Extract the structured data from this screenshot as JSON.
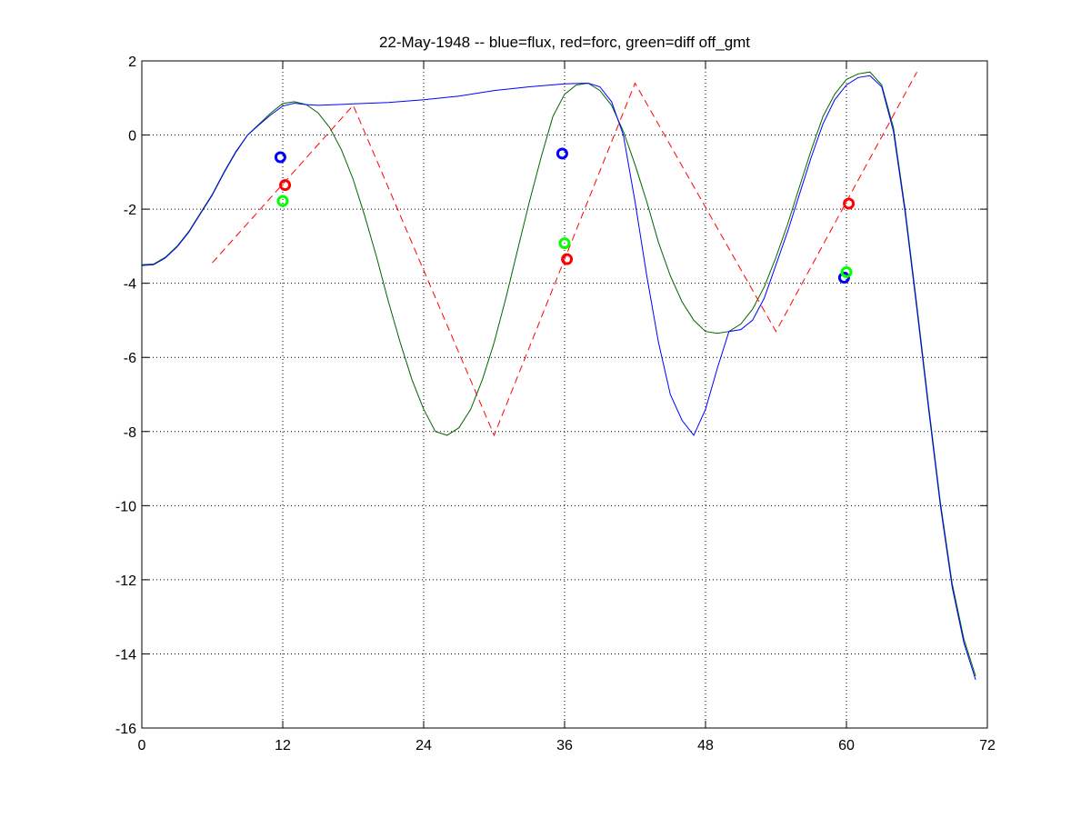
{
  "chart_data": {
    "type": "line",
    "title": "22-May-1948 -- blue=flux, red=forc, green=diff off_gmt",
    "xlim": [
      0,
      72
    ],
    "ylim": [
      -16,
      2
    ],
    "x_ticks": [
      0,
      12,
      24,
      36,
      48,
      60,
      72
    ],
    "y_ticks": [
      2,
      0,
      -2,
      -4,
      -6,
      -8,
      -10,
      -12,
      -14,
      -16
    ],
    "grid": true,
    "colors": {
      "blue": "#0000ff",
      "red": "#ff0000",
      "green": "#00ff00",
      "dark_green": "#006400",
      "axes": "#000000"
    },
    "series": [
      {
        "color": "#006400",
        "style": "solid",
        "x": [
          0,
          1,
          2,
          3,
          4,
          5,
          6,
          7,
          8,
          9,
          10,
          11,
          12,
          13,
          14,
          15,
          16,
          17,
          18,
          19,
          20,
          21,
          22,
          23,
          24,
          25,
          26,
          27,
          28,
          29,
          30,
          31,
          32,
          33,
          34,
          35,
          36,
          37,
          38,
          39,
          40,
          41,
          42,
          43,
          44,
          45,
          46,
          47,
          48,
          49,
          50,
          51,
          52,
          53,
          54,
          55,
          56,
          57,
          58,
          59,
          60,
          61,
          62,
          63,
          64,
          65,
          66,
          67,
          68,
          69,
          70,
          71
        ],
        "y": [
          -3.5,
          -3.48,
          -3.3,
          -3.0,
          -2.6,
          -2.1,
          -1.6,
          -1.0,
          -0.45,
          0.0,
          0.3,
          0.6,
          0.85,
          0.9,
          0.82,
          0.6,
          0.2,
          -0.4,
          -1.2,
          -2.2,
          -3.3,
          -4.5,
          -5.6,
          -6.6,
          -7.4,
          -8.0,
          -8.1,
          -7.9,
          -7.4,
          -6.6,
          -5.6,
          -4.4,
          -3.1,
          -1.8,
          -0.6,
          0.5,
          1.1,
          1.35,
          1.4,
          1.2,
          0.8,
          0.1,
          -0.8,
          -1.8,
          -2.9,
          -3.8,
          -4.5,
          -5.0,
          -5.3,
          -5.35,
          -5.3,
          -5.1,
          -4.7,
          -4.1,
          -3.3,
          -2.4,
          -1.4,
          -0.4,
          0.5,
          1.1,
          1.5,
          1.65,
          1.7,
          1.35,
          0.2,
          -2.0,
          -4.6,
          -7.3,
          -9.9,
          -12.1,
          -13.6,
          -14.6
        ]
      },
      {
        "color": "#0000ff",
        "style": "solid",
        "x": [
          0,
          1,
          2,
          3,
          4,
          5,
          6,
          7,
          8,
          9,
          10,
          11,
          12,
          13,
          14,
          15,
          18,
          21,
          24,
          27,
          30,
          33,
          36,
          37,
          38,
          39,
          40,
          41,
          42,
          43,
          44,
          45,
          46,
          47,
          48,
          49,
          50,
          51,
          52,
          53,
          54,
          55,
          56,
          57,
          58,
          59,
          60,
          61,
          62,
          63,
          64,
          65,
          66,
          67,
          68,
          69,
          70,
          71
        ],
        "y": [
          -3.52,
          -3.5,
          -3.32,
          -3.02,
          -2.62,
          -2.12,
          -1.62,
          -1.02,
          -0.47,
          0.0,
          0.28,
          0.55,
          0.78,
          0.86,
          0.82,
          0.8,
          0.84,
          0.88,
          0.95,
          1.05,
          1.2,
          1.3,
          1.38,
          1.39,
          1.4,
          1.3,
          0.9,
          0.0,
          -1.8,
          -3.8,
          -5.6,
          -7.0,
          -7.7,
          -8.1,
          -7.4,
          -6.3,
          -5.3,
          -5.25,
          -5.0,
          -4.4,
          -3.5,
          -2.6,
          -1.6,
          -0.6,
          0.3,
          0.95,
          1.35,
          1.55,
          1.6,
          1.3,
          0.1,
          -2.1,
          -4.7,
          -7.4,
          -10.0,
          -12.2,
          -13.7,
          -14.7
        ]
      },
      {
        "color": "#ff0000",
        "style": "dashed",
        "x": [
          6,
          18,
          30,
          42,
          54,
          66
        ],
        "y": [
          -3.45,
          0.8,
          -8.1,
          1.4,
          -5.3,
          1.7
        ]
      }
    ],
    "markers": [
      {
        "color": "#0000ff",
        "x": 11.8,
        "y": -0.6
      },
      {
        "color": "#ff0000",
        "x": 12.2,
        "y": -1.35
      },
      {
        "color": "#00ff00",
        "x": 12.0,
        "y": -1.78
      },
      {
        "color": "#0000ff",
        "x": 35.8,
        "y": -0.5
      },
      {
        "color": "#00ff00",
        "x": 36.0,
        "y": -2.92
      },
      {
        "color": "#ff0000",
        "x": 36.2,
        "y": -3.35
      },
      {
        "color": "#ff0000",
        "x": 60.2,
        "y": -1.85
      },
      {
        "color": "#0000ff",
        "x": 59.8,
        "y": -3.85
      },
      {
        "color": "#00ff00",
        "x": 60.0,
        "y": -3.7
      }
    ]
  }
}
